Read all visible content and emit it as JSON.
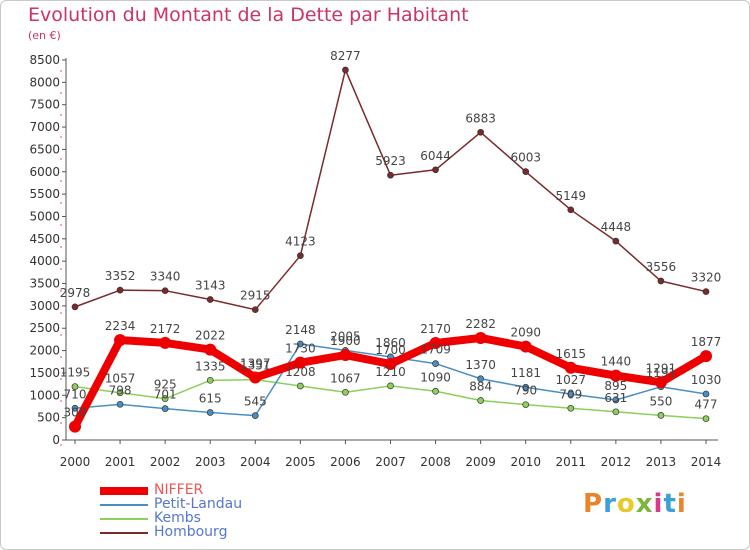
{
  "header": {
    "title": "Evolution du Montant de la Dette par Habitant",
    "subtitle": "(en €)"
  },
  "logo": {
    "text": "Proxiti",
    "colors": [
      "#e8842a",
      "#3aa0d8",
      "#e8c82a",
      "#7ab83c",
      "#d83a8a",
      "#3aa0d8",
      "#e8842a"
    ]
  },
  "chart_data": {
    "type": "line",
    "x": [
      2000,
      2001,
      2002,
      2003,
      2004,
      2005,
      2006,
      2007,
      2008,
      2009,
      2010,
      2011,
      2012,
      2013,
      2014
    ],
    "ylim": [
      0,
      8500
    ],
    "yticks": [
      0,
      500,
      1000,
      1500,
      2000,
      2500,
      3000,
      3500,
      4000,
      4500,
      5000,
      5500,
      6000,
      6500,
      7000,
      7500,
      8000,
      8500
    ],
    "grid": false,
    "legend_position": "bottom-left",
    "series": [
      {
        "name": "Hombourg",
        "color": "#7a2a2a",
        "values": [
          2978,
          3352,
          3340,
          3143,
          2915,
          4123,
          8277,
          5923,
          6044,
          6883,
          6003,
          5149,
          4448,
          3556,
          3320
        ]
      },
      {
        "name": "Kembs",
        "color": "#8ccf5a",
        "values": [
          1195,
          1057,
          925,
          1335,
          1351,
          1208,
          1067,
          1210,
          1090,
          884,
          790,
          709,
          631,
          550,
          477
        ]
      },
      {
        "name": "Petit-Landau",
        "color": "#4a8fc4",
        "values": [
          710,
          798,
          701,
          615,
          545,
          2148,
          2005,
          1860,
          1709,
          1370,
          1181,
          1027,
          895,
          1191,
          1030
        ]
      },
      {
        "name": "NIFFER",
        "color": "#ee0000",
        "values": [
          300,
          2234,
          2172,
          2022,
          1397,
          1730,
          1900,
          1700,
          2170,
          2282,
          2090,
          1615,
          1440,
          1291,
          1877
        ]
      }
    ],
    "legend_order": [
      "NIFFER",
      "Petit-Landau",
      "Kembs",
      "Hombourg"
    ]
  }
}
